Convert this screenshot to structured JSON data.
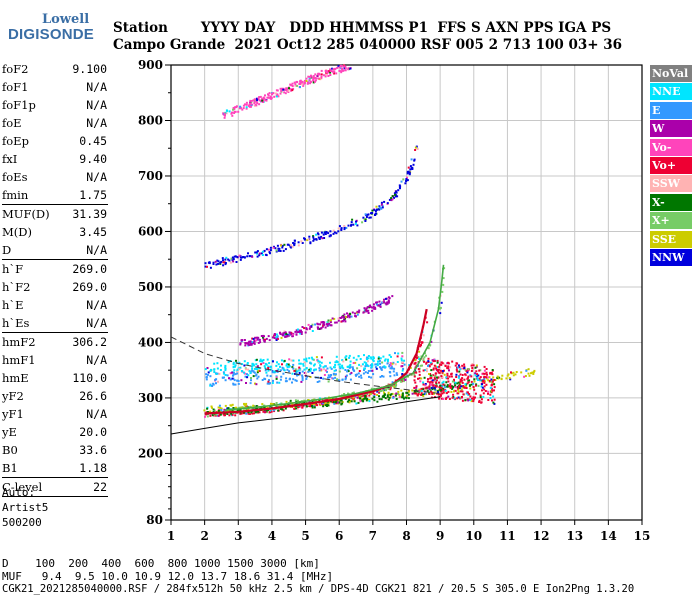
{
  "logo": {
    "line1": "Lowell",
    "line2": "DIGISONDE"
  },
  "header": {
    "labels": "Station       YYYY DAY   DDD HHMMSS P1  FFS S AXN PPS IGA PS",
    "values": "Campo Grande  2021 Oct12 285 040000 RSF 005 2 713 100 03+ 36"
  },
  "params": [
    {
      "k": "foF2",
      "v": "9.100"
    },
    {
      "k": "foF1",
      "v": "N/A"
    },
    {
      "k": "foF1p",
      "v": "N/A"
    },
    {
      "k": "foE",
      "v": "N/A"
    },
    {
      "k": "foEp",
      "v": "0.45"
    },
    {
      "k": "fxI",
      "v": "9.40"
    },
    {
      "k": "foEs",
      "v": "N/A"
    },
    {
      "k": "fmin",
      "v": "1.75"
    },
    {
      "sep": true
    },
    {
      "k": "MUF(D)",
      "v": "31.39"
    },
    {
      "k": "M(D)",
      "v": "3.45"
    },
    {
      "k": "D",
      "v": "N/A"
    },
    {
      "sep": true
    },
    {
      "k": "h`F",
      "v": "269.0"
    },
    {
      "k": "h`F2",
      "v": "269.0"
    },
    {
      "k": "h`E",
      "v": "N/A"
    },
    {
      "k": "h`Es",
      "v": "N/A"
    },
    {
      "sep": true
    },
    {
      "k": "hmF2",
      "v": "306.2"
    },
    {
      "k": "hmF1",
      "v": "N/A"
    },
    {
      "k": "hmE",
      "v": "110.0"
    },
    {
      "k": "yF2",
      "v": "26.6"
    },
    {
      "k": "yF1",
      "v": "N/A"
    },
    {
      "k": "yE",
      "v": "20.0"
    },
    {
      "k": "B0",
      "v": "33.6"
    },
    {
      "k": "B1",
      "v": "1.18"
    },
    {
      "sep": true
    },
    {
      "k": "C-level",
      "v": "22"
    },
    {
      "sep": true
    }
  ],
  "auto": {
    "line1": "Auto:",
    "line2": "Artist5",
    "line3": "500200"
  },
  "legend": [
    {
      "label": "NoVal",
      "bg": "#808080",
      "fg": "#ffffff"
    },
    {
      "label": "NNE",
      "bg": "#00e5ff",
      "fg": "#ffffff"
    },
    {
      "label": "E",
      "bg": "#3399ff",
      "fg": "#ffffff"
    },
    {
      "label": "W",
      "bg": "#aa00aa",
      "fg": "#ffffff"
    },
    {
      "label": "Vo-",
      "bg": "#ff44bb",
      "fg": "#ffffff"
    },
    {
      "label": "Vo+",
      "bg": "#ee0033",
      "fg": "#ffffff"
    },
    {
      "label": "SSW",
      "bg": "#ffb3b3",
      "fg": "#ffffff"
    },
    {
      "label": "X-",
      "bg": "#007700",
      "fg": "#ffffff"
    },
    {
      "label": "X+",
      "bg": "#77cc66",
      "fg": "#ffffff"
    },
    {
      "label": "SSE",
      "bg": "#cccc00",
      "fg": "#ffffff"
    },
    {
      "label": "NNW",
      "bg": "#0000dd",
      "fg": "#ffffff"
    }
  ],
  "chart_data": {
    "type": "scatter",
    "x_range": [
      1,
      15
    ],
    "y_range": [
      80,
      900
    ],
    "x_ticks": [
      1,
      2,
      3,
      4,
      5,
      6,
      7,
      8,
      9,
      10,
      11,
      12,
      13,
      14,
      15
    ],
    "y_ticks": [
      80,
      200,
      300,
      400,
      500,
      600,
      700,
      800,
      900
    ],
    "y_minor_ticks": [
      100,
      120,
      140,
      160,
      180,
      250,
      350,
      450,
      550,
      650,
      750,
      850
    ],
    "grid": true,
    "tick_unit_label": "[km]",
    "traces": [
      {
        "name": "O-trace F2 (Vo+)",
        "color": "#ee0033",
        "points": [
          [
            2.0,
            272
          ],
          [
            3,
            275
          ],
          [
            4,
            281
          ],
          [
            5,
            289
          ],
          [
            6,
            298
          ],
          [
            7,
            312
          ],
          [
            7.6,
            325
          ],
          [
            8.0,
            345
          ],
          [
            8.3,
            380
          ],
          [
            8.5,
            430
          ],
          [
            8.6,
            460
          ]
        ]
      },
      {
        "name": "X-trace F2 (X+)",
        "color": "#77cc66",
        "points": [
          [
            2.6,
            278
          ],
          [
            3.5,
            283
          ],
          [
            4.5,
            290
          ],
          [
            5.5,
            298
          ],
          [
            6.5,
            308
          ],
          [
            7.5,
            322
          ],
          [
            8.2,
            345
          ],
          [
            8.7,
            400
          ],
          [
            8.95,
            460
          ],
          [
            9.05,
            510
          ],
          [
            9.1,
            540
          ]
        ]
      },
      {
        "name": "second hop (NNW)",
        "color": "#0000dd",
        "points": [
          [
            2.0,
            540
          ],
          [
            3,
            555
          ],
          [
            4,
            568
          ],
          [
            5,
            585
          ],
          [
            6,
            605
          ],
          [
            7,
            635
          ],
          [
            7.6,
            665
          ],
          [
            8.0,
            700
          ],
          [
            8.2,
            730
          ],
          [
            8.35,
            760
          ]
        ]
      },
      {
        "name": "third hop (Vo-)",
        "color": "#ff44bb",
        "points": [
          [
            2.5,
            810
          ],
          [
            3.5,
            835
          ],
          [
            4.5,
            860
          ],
          [
            5.5,
            885
          ],
          [
            6.3,
            900
          ]
        ]
      },
      {
        "name": "oblique (W)",
        "color": "#aa00aa",
        "points": [
          [
            3.0,
            400
          ],
          [
            4,
            410
          ],
          [
            5,
            425
          ],
          [
            6,
            443
          ],
          [
            7,
            465
          ],
          [
            7.5,
            480
          ]
        ]
      },
      {
        "name": "spread (E)",
        "color": "#3399ff",
        "points": [
          [
            2.0,
            335
          ],
          [
            3,
            338
          ],
          [
            4,
            340
          ],
          [
            5,
            342
          ],
          [
            6,
            345
          ],
          [
            7,
            350
          ],
          [
            8,
            355
          ]
        ]
      },
      {
        "name": "spread (NNE)",
        "color": "#00e5ff",
        "points": [
          [
            2.0,
            355
          ],
          [
            3,
            358
          ],
          [
            4,
            360
          ],
          [
            5,
            362
          ],
          [
            6,
            365
          ],
          [
            7,
            368
          ],
          [
            8,
            372
          ]
        ]
      },
      {
        "name": "spread (SSE)",
        "color": "#cccc00",
        "points": [
          [
            2.0,
            280
          ],
          [
            4,
            288
          ],
          [
            6,
            298
          ],
          [
            8,
            310
          ],
          [
            9.5,
            320
          ],
          [
            10.5,
            335
          ],
          [
            11.8,
            350
          ]
        ]
      },
      {
        "name": "X- scatter",
        "color": "#007700",
        "points": [
          [
            2.0,
            276
          ],
          [
            4,
            284
          ],
          [
            6,
            295
          ],
          [
            8,
            306
          ],
          [
            9,
            320
          ],
          [
            10,
            330
          ]
        ]
      }
    ],
    "profile_line": [
      [
        1.0,
        410
      ],
      [
        2,
        380
      ],
      [
        3,
        362
      ],
      [
        4,
        350
      ],
      [
        5,
        340
      ],
      [
        6,
        330
      ],
      [
        7,
        322
      ],
      [
        8,
        315
      ],
      [
        9,
        308
      ]
    ],
    "lower_line": [
      [
        1.0,
        235
      ],
      [
        2,
        245
      ],
      [
        3,
        255
      ],
      [
        4,
        262
      ],
      [
        5,
        268
      ],
      [
        6,
        275
      ],
      [
        7,
        283
      ],
      [
        8,
        293
      ],
      [
        9,
        302
      ]
    ]
  },
  "footer": {
    "line1": "D    100  200  400  600  800 1000 1500 3000 [km]",
    "line2": "MUF   9.4  9.5 10.0 10.9 12.0 13.7 18.6 31.4 [MHz]",
    "line3": "CGK21_2021285040000.RSF / 284fx512h 50 kHz 2.5 km / DPS-4D CGK21 821 / 20.5 S 305.0 E Ion2Png 1.3.20"
  }
}
